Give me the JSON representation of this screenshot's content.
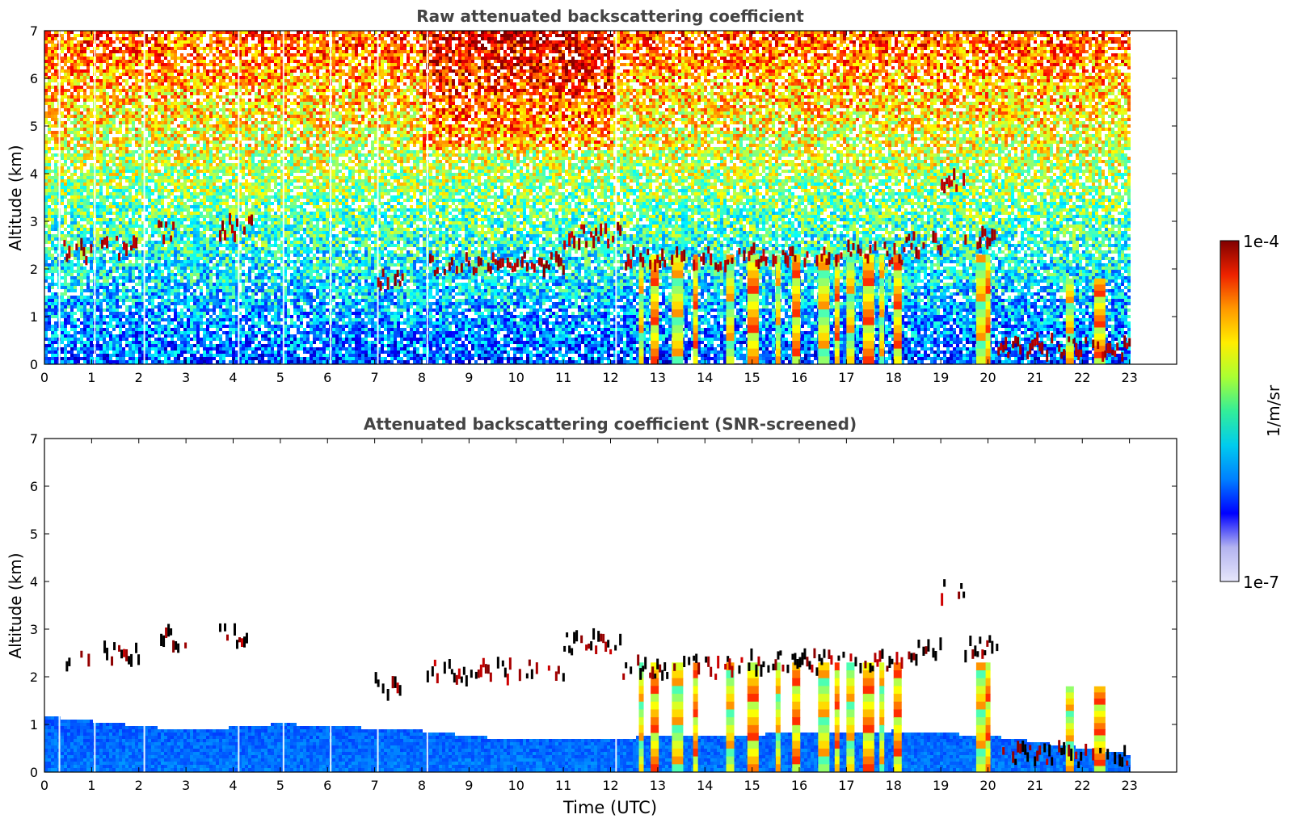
{
  "colors": {
    "frame": "#000000",
    "title": "#444444",
    "background": "#ffffff",
    "black_trace": "#000000"
  },
  "chart_data": [
    {
      "type": "heatmap",
      "title": "Raw attenuated backscattering coefficient",
      "xlabel": "",
      "ylabel": "Altitude (km)",
      "xlim": [
        0,
        24
      ],
      "ylim": [
        0,
        7
      ],
      "x_ticks": [
        "0",
        "1",
        "2",
        "3",
        "4",
        "5",
        "6",
        "7",
        "8",
        "9",
        "10",
        "11",
        "12",
        "13",
        "14",
        "15",
        "16",
        "17",
        "18",
        "19",
        "20",
        "21",
        "22",
        "23"
      ],
      "y_ticks": [
        "0",
        "1",
        "2",
        "3",
        "4",
        "5",
        "6",
        "7"
      ],
      "data_end_time": 23,
      "colorscale": "jet",
      "cloud_layers": [
        {
          "x": [
            0.4,
            1.0
          ],
          "y": 2.35
        },
        {
          "x": [
            1.2,
            2.0
          ],
          "y": 2.45
        },
        {
          "x": [
            2.4,
            3.0
          ],
          "y": 2.8
        },
        {
          "x": [
            3.7,
            4.4
          ],
          "y": 2.85
        },
        {
          "x": [
            7.0,
            7.6
          ],
          "y": 1.8
        },
        {
          "x": [
            8.1,
            11.0
          ],
          "y": 2.1
        },
        {
          "x": [
            11.0,
            12.2
          ],
          "y": 2.7
        },
        {
          "x": [
            12.2,
            14.5
          ],
          "y": 2.2
        },
        {
          "x": [
            14.5,
            18.2
          ],
          "y": 2.3
        },
        {
          "x": [
            18.2,
            19.0
          ],
          "y": 2.5
        },
        {
          "x": [
            19.0,
            19.5
          ],
          "y": 3.8
        },
        {
          "x": [
            19.5,
            20.2
          ],
          "y": 2.6
        },
        {
          "x": [
            20.2,
            23.0
          ],
          "y": 0.35
        }
      ],
      "precip_columns": [
        12.6,
        12.85,
        13.3,
        13.75,
        14.45,
        14.9,
        15.5,
        15.85,
        16.4,
        16.75,
        17.0,
        17.35,
        17.7,
        18.0,
        19.75,
        19.95,
        21.65,
        22.25
      ]
    },
    {
      "type": "heatmap",
      "title": "Attenuated backscattering coefficient (SNR-screened)",
      "xlabel": "Time (UTC)",
      "ylabel": "Altitude (km)",
      "xlim": [
        0,
        24
      ],
      "ylim": [
        0,
        7
      ],
      "x_ticks": [
        "0",
        "1",
        "2",
        "3",
        "4",
        "5",
        "6",
        "7",
        "8",
        "9",
        "10",
        "11",
        "12",
        "13",
        "14",
        "15",
        "16",
        "17",
        "18",
        "19",
        "20",
        "21",
        "22",
        "23"
      ],
      "y_ticks": [
        "0",
        "1",
        "2",
        "3",
        "4",
        "5",
        "6",
        "7"
      ],
      "data_end_time": 23,
      "colorscale": "jet",
      "boundary_layer_top_km": [
        [
          0,
          1.2
        ],
        [
          3,
          0.9
        ],
        [
          5,
          1.05
        ],
        [
          8,
          0.9
        ],
        [
          10,
          0.7
        ],
        [
          12,
          0.75
        ],
        [
          18,
          0.9
        ],
        [
          20,
          0.8
        ],
        [
          23,
          0.4
        ]
      ]
    }
  ],
  "colorbar": {
    "label": "1/m/sr",
    "max_label": "1e-4",
    "min_label": "1e-7",
    "stops": [
      "#e6e6fa",
      "#b3b3f0",
      "#0000ff",
      "#0080ff",
      "#00ccee",
      "#33ee99",
      "#aaff33",
      "#ffee00",
      "#ff9900",
      "#ee2200",
      "#800000"
    ]
  }
}
